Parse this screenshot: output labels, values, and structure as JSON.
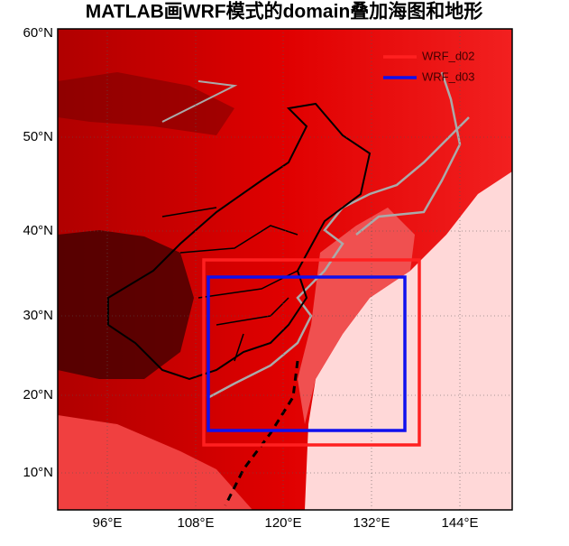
{
  "title": "MATLAB画WRF模式的domain叠加海图和地形",
  "x_axis_labels": [
    "96°E",
    "108°E",
    "120°E",
    "132°E",
    "144°E"
  ],
  "y_axis_labels": [
    "60°N",
    "50°N",
    "40°N",
    "30°N",
    "20°N",
    "10°N"
  ],
  "legend": [
    "WRF_d02",
    "WRF_d03"
  ]
}
